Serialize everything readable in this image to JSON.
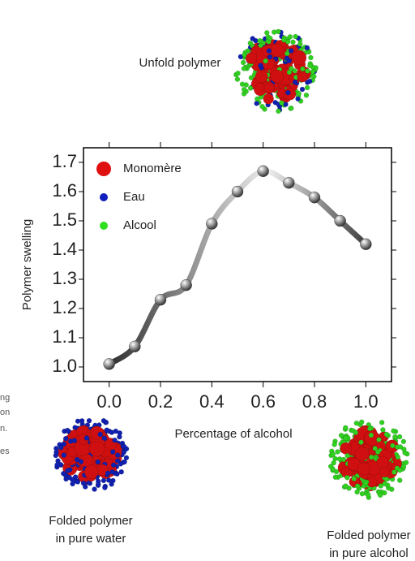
{
  "chart_data": {
    "type": "scatter",
    "x": [
      0.0,
      0.1,
      0.2,
      0.3,
      0.4,
      0.5,
      0.6,
      0.7,
      0.8,
      0.9,
      1.0
    ],
    "values": [
      1.01,
      1.07,
      1.23,
      1.28,
      1.49,
      1.6,
      1.67,
      1.63,
      1.58,
      1.5,
      1.42
    ],
    "xlim": [
      -0.1,
      1.1
    ],
    "ylim": [
      0.95,
      1.75
    ],
    "xticks": [
      {
        "value": 0,
        "label": "0.0"
      },
      0.2,
      0.4,
      0.6,
      0.8,
      {
        "value": 1,
        "label": "1.0"
      }
    ],
    "yticks": [
      {
        "value": 1,
        "label": "1.0"
      },
      1.1,
      1.2,
      1.3,
      1.4,
      1.5,
      1.6,
      1.7
    ],
    "xlabel": "Percentage of alcohol",
    "ylabel": "Polymer swelling",
    "legend": [
      {
        "label": "Monomère",
        "color": "#e01010"
      },
      {
        "label": "Eau",
        "color": "#1020c0"
      },
      {
        "label": "Alcool",
        "color": "#30e020"
      }
    ],
    "annotations": [
      "Unfold polymer",
      "Folded polymer",
      "in pure water",
      "Folded polymer",
      "in pure alcohol"
    ],
    "cut_text": [
      "ng",
      "on",
      "n.",
      "es"
    ]
  }
}
